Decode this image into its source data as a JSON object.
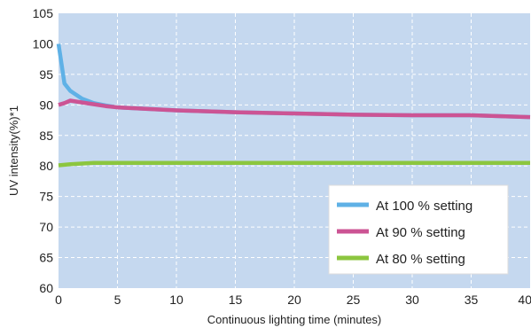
{
  "chart_data": {
    "type": "line",
    "title": "",
    "xlabel": "Continuous lighting time (minutes)",
    "ylabel": "UV intensity(%)*1",
    "xlim": [
      0,
      40
    ],
    "ylim": [
      60,
      105
    ],
    "xticks": [
      "0",
      "5",
      "10",
      "15",
      "20",
      "25",
      "30",
      "35",
      "40"
    ],
    "yticks": [
      "60",
      "65",
      "70",
      "75",
      "80",
      "85",
      "90",
      "95",
      "100",
      "105"
    ],
    "grid": true,
    "legend_position": "bottom-right",
    "plot_background": "#c5d8ef",
    "series": [
      {
        "name": "At 100 % setting",
        "color": "#5fb1e6",
        "x": [
          0,
          0.5,
          1,
          2,
          3,
          4,
          5,
          10,
          15,
          20,
          25,
          30,
          35,
          40
        ],
        "y": [
          100,
          93.5,
          92.3,
          91,
          90.3,
          89.9,
          89.6,
          89.1,
          88.8,
          88.6,
          88.4,
          88.3,
          88.3,
          88
        ]
      },
      {
        "name": "At 90 % setting",
        "color": "#cc5494",
        "x": [
          0,
          0.5,
          1,
          2,
          3,
          4,
          5,
          10,
          15,
          20,
          25,
          30,
          35,
          40
        ],
        "y": [
          90,
          90.3,
          90.7,
          90.4,
          90.1,
          89.8,
          89.6,
          89.1,
          88.8,
          88.6,
          88.4,
          88.3,
          88.3,
          88
        ]
      },
      {
        "name": "At 80 % setting",
        "color": "#8cc63f",
        "x": [
          0,
          1,
          2,
          3,
          4,
          5,
          10,
          20,
          30,
          40
        ],
        "y": [
          80.1,
          80.3,
          80.4,
          80.5,
          80.5,
          80.5,
          80.5,
          80.5,
          80.5,
          80.5
        ]
      }
    ]
  }
}
